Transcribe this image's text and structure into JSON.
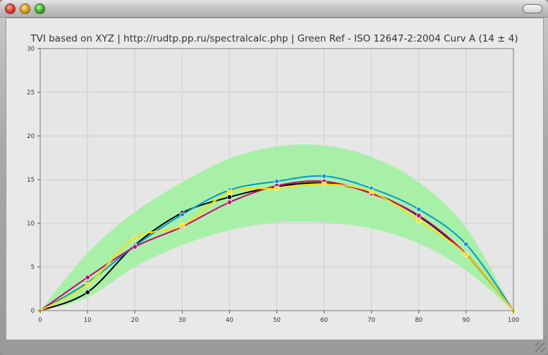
{
  "window": {
    "title": ""
  },
  "chart_data": {
    "type": "line",
    "title": "TVI based on XYZ | http://rudtp.pp.ru/spectralcalc.php | Green Ref - ISO 12647-2:2004 Curv A (14 ± 4)",
    "xlabel": "",
    "ylabel": "",
    "xlim": [
      0,
      100
    ],
    "ylim": [
      0,
      30
    ],
    "x_ticks": [
      0,
      10,
      20,
      30,
      40,
      50,
      60,
      70,
      80,
      90,
      100
    ],
    "y_ticks": [
      0,
      5,
      10,
      15,
      20,
      25,
      30
    ],
    "grid": true,
    "band": {
      "x": [
        0,
        10,
        20,
        30,
        40,
        50,
        60,
        70,
        80,
        90,
        100
      ],
      "upper": [
        0,
        6.6,
        11.3,
        14.7,
        17.4,
        18.8,
        18.9,
        17.6,
        14.7,
        9.5,
        0
      ],
      "lower": [
        0,
        1.5,
        5.0,
        7.5,
        9.2,
        10.1,
        10.1,
        9.4,
        7.7,
        4.6,
        0
      ],
      "color": "#a8f0a8"
    },
    "series": [
      {
        "color": "#000000",
        "x": [
          0,
          10,
          20,
          30,
          40,
          50,
          60,
          70,
          80,
          90,
          100
        ],
        "y": [
          0,
          2.1,
          7.5,
          11.2,
          13.0,
          14.2,
          14.6,
          13.5,
          10.8,
          6.4,
          0
        ]
      },
      {
        "color": "#0099cc",
        "x": [
          0,
          10,
          20,
          30,
          40,
          50,
          60,
          70,
          80,
          90,
          100
        ],
        "y": [
          0,
          3.2,
          7.4,
          11.0,
          13.8,
          14.8,
          15.4,
          14.0,
          11.6,
          7.6,
          0
        ]
      },
      {
        "color": "#cc0077",
        "x": [
          0,
          10,
          20,
          30,
          40,
          50,
          60,
          70,
          80,
          90,
          100
        ],
        "y": [
          0,
          3.8,
          7.3,
          9.6,
          12.4,
          14.3,
          14.8,
          13.4,
          10.9,
          6.5,
          0
        ]
      },
      {
        "color": "#ffdd00",
        "x": [
          0,
          10,
          20,
          30,
          40,
          50,
          60,
          70,
          80,
          90,
          100
        ],
        "y": [
          0,
          3.0,
          8.3,
          9.7,
          13.6,
          14.0,
          14.5,
          13.6,
          10.3,
          6.4,
          0
        ]
      }
    ]
  }
}
